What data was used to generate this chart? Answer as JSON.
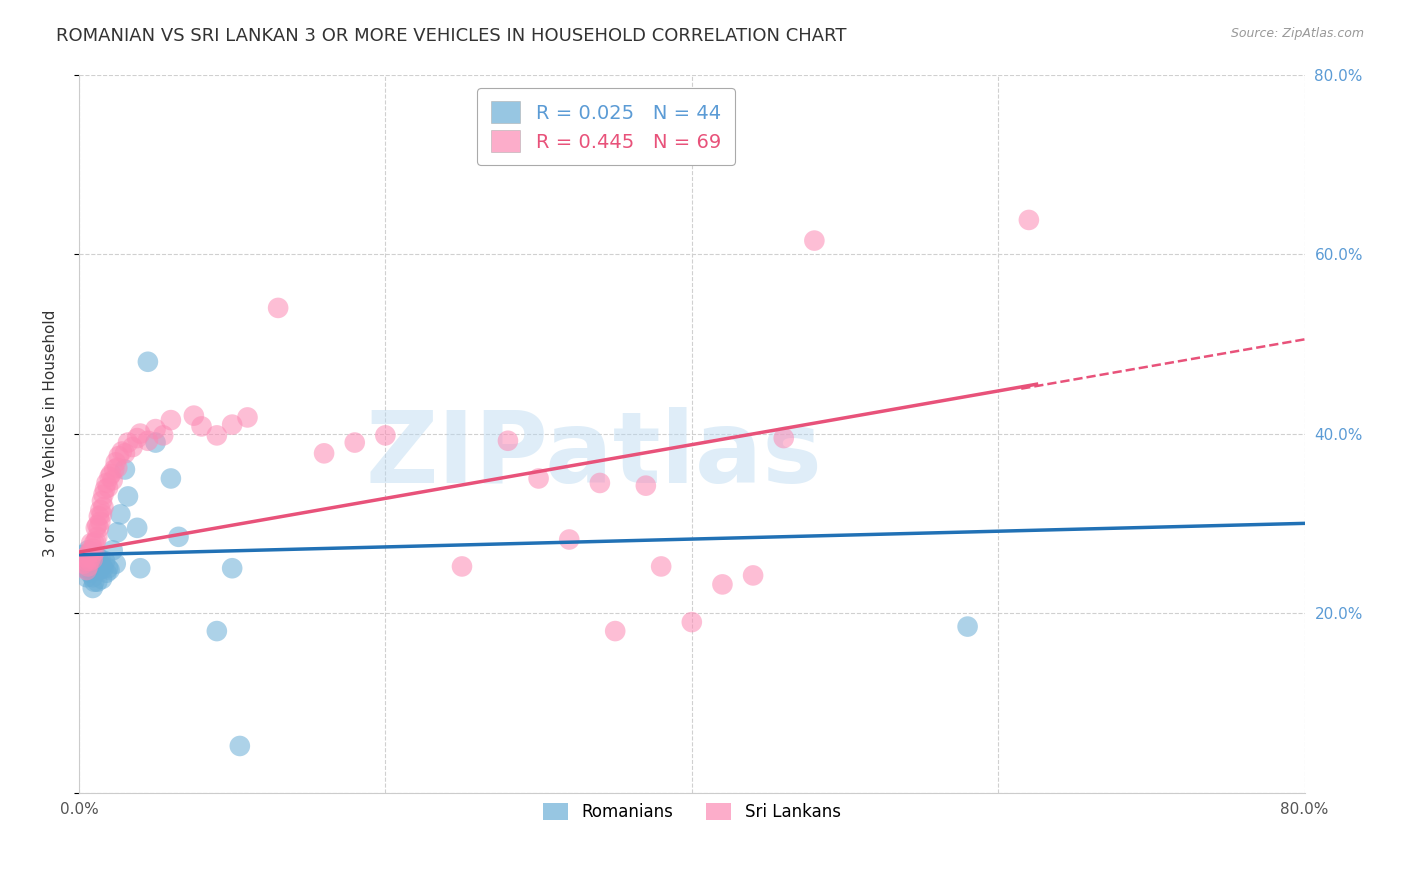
{
  "title": "ROMANIAN VS SRI LANKAN 3 OR MORE VEHICLES IN HOUSEHOLD CORRELATION CHART",
  "source": "Source: ZipAtlas.com",
  "ylabel": "3 or more Vehicles in Household",
  "xlim": [
    0.0,
    0.8
  ],
  "ylim": [
    0.0,
    0.8
  ],
  "legend_label_romanian": "Romanians",
  "legend_label_srilankan": "Sri Lankans",
  "color_romanian": "#6baed6",
  "color_srilankan": "#fc8ab4",
  "color_trendline_romanian": "#2171b5",
  "color_trendline_srilankan": "#e8527a",
  "watermark": "ZIPatlas",
  "watermark_color": "#b8d8f0",
  "background_color": "#ffffff",
  "title_fontsize": 13,
  "axis_label_fontsize": 11,
  "tick_fontsize": 11,
  "romanian_x": [
    0.003,
    0.004,
    0.005,
    0.005,
    0.006,
    0.006,
    0.007,
    0.007,
    0.008,
    0.008,
    0.009,
    0.009,
    0.01,
    0.01,
    0.011,
    0.011,
    0.012,
    0.012,
    0.013,
    0.013,
    0.014,
    0.015,
    0.015,
    0.016,
    0.017,
    0.018,
    0.019,
    0.02,
    0.022,
    0.024,
    0.025,
    0.027,
    0.03,
    0.032,
    0.038,
    0.04,
    0.045,
    0.05,
    0.06,
    0.065,
    0.09,
    0.1,
    0.58,
    0.105
  ],
  "romanian_y": [
    0.265,
    0.25,
    0.24,
    0.26,
    0.255,
    0.27,
    0.258,
    0.245,
    0.25,
    0.26,
    0.24,
    0.228,
    0.252,
    0.235,
    0.255,
    0.248,
    0.262,
    0.235,
    0.248,
    0.258,
    0.26,
    0.252,
    0.238,
    0.25,
    0.258,
    0.245,
    0.25,
    0.248,
    0.27,
    0.255,
    0.29,
    0.31,
    0.36,
    0.33,
    0.295,
    0.25,
    0.48,
    0.39,
    0.35,
    0.285,
    0.18,
    0.25,
    0.185,
    0.052
  ],
  "srilankan_x": [
    0.003,
    0.004,
    0.005,
    0.005,
    0.006,
    0.006,
    0.007,
    0.007,
    0.008,
    0.008,
    0.009,
    0.009,
    0.01,
    0.01,
    0.011,
    0.011,
    0.012,
    0.012,
    0.013,
    0.013,
    0.014,
    0.014,
    0.015,
    0.015,
    0.016,
    0.016,
    0.017,
    0.018,
    0.019,
    0.02,
    0.021,
    0.022,
    0.023,
    0.024,
    0.025,
    0.026,
    0.028,
    0.03,
    0.032,
    0.035,
    0.038,
    0.04,
    0.045,
    0.05,
    0.055,
    0.06,
    0.075,
    0.08,
    0.09,
    0.1,
    0.11,
    0.13,
    0.16,
    0.18,
    0.2,
    0.25,
    0.28,
    0.3,
    0.32,
    0.34,
    0.35,
    0.37,
    0.38,
    0.4,
    0.42,
    0.44,
    0.46,
    0.48,
    0.62
  ],
  "srilankan_y": [
    0.255,
    0.262,
    0.248,
    0.258,
    0.252,
    0.265,
    0.258,
    0.268,
    0.262,
    0.278,
    0.272,
    0.26,
    0.268,
    0.278,
    0.28,
    0.295,
    0.285,
    0.298,
    0.295,
    0.308,
    0.302,
    0.315,
    0.31,
    0.325,
    0.318,
    0.332,
    0.338,
    0.345,
    0.34,
    0.352,
    0.355,
    0.348,
    0.36,
    0.368,
    0.362,
    0.375,
    0.38,
    0.378,
    0.39,
    0.385,
    0.395,
    0.4,
    0.392,
    0.405,
    0.398,
    0.415,
    0.42,
    0.408,
    0.398,
    0.41,
    0.418,
    0.54,
    0.378,
    0.39,
    0.398,
    0.252,
    0.392,
    0.35,
    0.282,
    0.345,
    0.18,
    0.342,
    0.252,
    0.19,
    0.232,
    0.242,
    0.395,
    0.615,
    0.638
  ],
  "trendline_rom_x0": 0.0,
  "trendline_rom_y0": 0.265,
  "trendline_rom_x1": 0.8,
  "trendline_rom_y1": 0.3,
  "trendline_sri_x0": 0.0,
  "trendline_sri_y0": 0.268,
  "trendline_sri_x1": 0.625,
  "trendline_sri_y1": 0.455,
  "trendline_sri_dash_x0": 0.615,
  "trendline_sri_dash_x1": 0.8,
  "trendline_sri_dash_y0": 0.45,
  "trendline_sri_dash_y1": 0.505
}
